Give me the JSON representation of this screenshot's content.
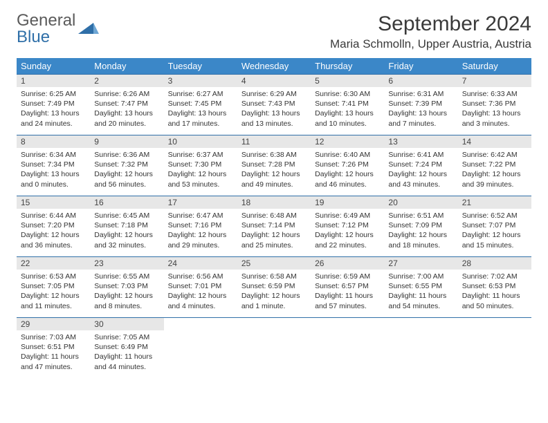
{
  "logo": {
    "text1": "General",
    "text2": "Blue"
  },
  "title": "September 2024",
  "location": "Maria Schmolln, Upper Austria, Austria",
  "header_bg": "#3b87c8",
  "daynum_bg": "#e7e7e7",
  "border_color": "#2f6fa8",
  "weekdays": [
    "Sunday",
    "Monday",
    "Tuesday",
    "Wednesday",
    "Thursday",
    "Friday",
    "Saturday"
  ],
  "weeks": [
    [
      {
        "n": "1",
        "sunrise": "Sunrise: 6:25 AM",
        "sunset": "Sunset: 7:49 PM",
        "d1": "Daylight: 13 hours",
        "d2": "and 24 minutes."
      },
      {
        "n": "2",
        "sunrise": "Sunrise: 6:26 AM",
        "sunset": "Sunset: 7:47 PM",
        "d1": "Daylight: 13 hours",
        "d2": "and 20 minutes."
      },
      {
        "n": "3",
        "sunrise": "Sunrise: 6:27 AM",
        "sunset": "Sunset: 7:45 PM",
        "d1": "Daylight: 13 hours",
        "d2": "and 17 minutes."
      },
      {
        "n": "4",
        "sunrise": "Sunrise: 6:29 AM",
        "sunset": "Sunset: 7:43 PM",
        "d1": "Daylight: 13 hours",
        "d2": "and 13 minutes."
      },
      {
        "n": "5",
        "sunrise": "Sunrise: 6:30 AM",
        "sunset": "Sunset: 7:41 PM",
        "d1": "Daylight: 13 hours",
        "d2": "and 10 minutes."
      },
      {
        "n": "6",
        "sunrise": "Sunrise: 6:31 AM",
        "sunset": "Sunset: 7:39 PM",
        "d1": "Daylight: 13 hours",
        "d2": "and 7 minutes."
      },
      {
        "n": "7",
        "sunrise": "Sunrise: 6:33 AM",
        "sunset": "Sunset: 7:36 PM",
        "d1": "Daylight: 13 hours",
        "d2": "and 3 minutes."
      }
    ],
    [
      {
        "n": "8",
        "sunrise": "Sunrise: 6:34 AM",
        "sunset": "Sunset: 7:34 PM",
        "d1": "Daylight: 13 hours",
        "d2": "and 0 minutes."
      },
      {
        "n": "9",
        "sunrise": "Sunrise: 6:36 AM",
        "sunset": "Sunset: 7:32 PM",
        "d1": "Daylight: 12 hours",
        "d2": "and 56 minutes."
      },
      {
        "n": "10",
        "sunrise": "Sunrise: 6:37 AM",
        "sunset": "Sunset: 7:30 PM",
        "d1": "Daylight: 12 hours",
        "d2": "and 53 minutes."
      },
      {
        "n": "11",
        "sunrise": "Sunrise: 6:38 AM",
        "sunset": "Sunset: 7:28 PM",
        "d1": "Daylight: 12 hours",
        "d2": "and 49 minutes."
      },
      {
        "n": "12",
        "sunrise": "Sunrise: 6:40 AM",
        "sunset": "Sunset: 7:26 PM",
        "d1": "Daylight: 12 hours",
        "d2": "and 46 minutes."
      },
      {
        "n": "13",
        "sunrise": "Sunrise: 6:41 AM",
        "sunset": "Sunset: 7:24 PM",
        "d1": "Daylight: 12 hours",
        "d2": "and 43 minutes."
      },
      {
        "n": "14",
        "sunrise": "Sunrise: 6:42 AM",
        "sunset": "Sunset: 7:22 PM",
        "d1": "Daylight: 12 hours",
        "d2": "and 39 minutes."
      }
    ],
    [
      {
        "n": "15",
        "sunrise": "Sunrise: 6:44 AM",
        "sunset": "Sunset: 7:20 PM",
        "d1": "Daylight: 12 hours",
        "d2": "and 36 minutes."
      },
      {
        "n": "16",
        "sunrise": "Sunrise: 6:45 AM",
        "sunset": "Sunset: 7:18 PM",
        "d1": "Daylight: 12 hours",
        "d2": "and 32 minutes."
      },
      {
        "n": "17",
        "sunrise": "Sunrise: 6:47 AM",
        "sunset": "Sunset: 7:16 PM",
        "d1": "Daylight: 12 hours",
        "d2": "and 29 minutes."
      },
      {
        "n": "18",
        "sunrise": "Sunrise: 6:48 AM",
        "sunset": "Sunset: 7:14 PM",
        "d1": "Daylight: 12 hours",
        "d2": "and 25 minutes."
      },
      {
        "n": "19",
        "sunrise": "Sunrise: 6:49 AM",
        "sunset": "Sunset: 7:12 PM",
        "d1": "Daylight: 12 hours",
        "d2": "and 22 minutes."
      },
      {
        "n": "20",
        "sunrise": "Sunrise: 6:51 AM",
        "sunset": "Sunset: 7:09 PM",
        "d1": "Daylight: 12 hours",
        "d2": "and 18 minutes."
      },
      {
        "n": "21",
        "sunrise": "Sunrise: 6:52 AM",
        "sunset": "Sunset: 7:07 PM",
        "d1": "Daylight: 12 hours",
        "d2": "and 15 minutes."
      }
    ],
    [
      {
        "n": "22",
        "sunrise": "Sunrise: 6:53 AM",
        "sunset": "Sunset: 7:05 PM",
        "d1": "Daylight: 12 hours",
        "d2": "and 11 minutes."
      },
      {
        "n": "23",
        "sunrise": "Sunrise: 6:55 AM",
        "sunset": "Sunset: 7:03 PM",
        "d1": "Daylight: 12 hours",
        "d2": "and 8 minutes."
      },
      {
        "n": "24",
        "sunrise": "Sunrise: 6:56 AM",
        "sunset": "Sunset: 7:01 PM",
        "d1": "Daylight: 12 hours",
        "d2": "and 4 minutes."
      },
      {
        "n": "25",
        "sunrise": "Sunrise: 6:58 AM",
        "sunset": "Sunset: 6:59 PM",
        "d1": "Daylight: 12 hours",
        "d2": "and 1 minute."
      },
      {
        "n": "26",
        "sunrise": "Sunrise: 6:59 AM",
        "sunset": "Sunset: 6:57 PM",
        "d1": "Daylight: 11 hours",
        "d2": "and 57 minutes."
      },
      {
        "n": "27",
        "sunrise": "Sunrise: 7:00 AM",
        "sunset": "Sunset: 6:55 PM",
        "d1": "Daylight: 11 hours",
        "d2": "and 54 minutes."
      },
      {
        "n": "28",
        "sunrise": "Sunrise: 7:02 AM",
        "sunset": "Sunset: 6:53 PM",
        "d1": "Daylight: 11 hours",
        "d2": "and 50 minutes."
      }
    ],
    [
      {
        "n": "29",
        "sunrise": "Sunrise: 7:03 AM",
        "sunset": "Sunset: 6:51 PM",
        "d1": "Daylight: 11 hours",
        "d2": "and 47 minutes."
      },
      {
        "n": "30",
        "sunrise": "Sunrise: 7:05 AM",
        "sunset": "Sunset: 6:49 PM",
        "d1": "Daylight: 11 hours",
        "d2": "and 44 minutes."
      },
      null,
      null,
      null,
      null,
      null
    ]
  ]
}
